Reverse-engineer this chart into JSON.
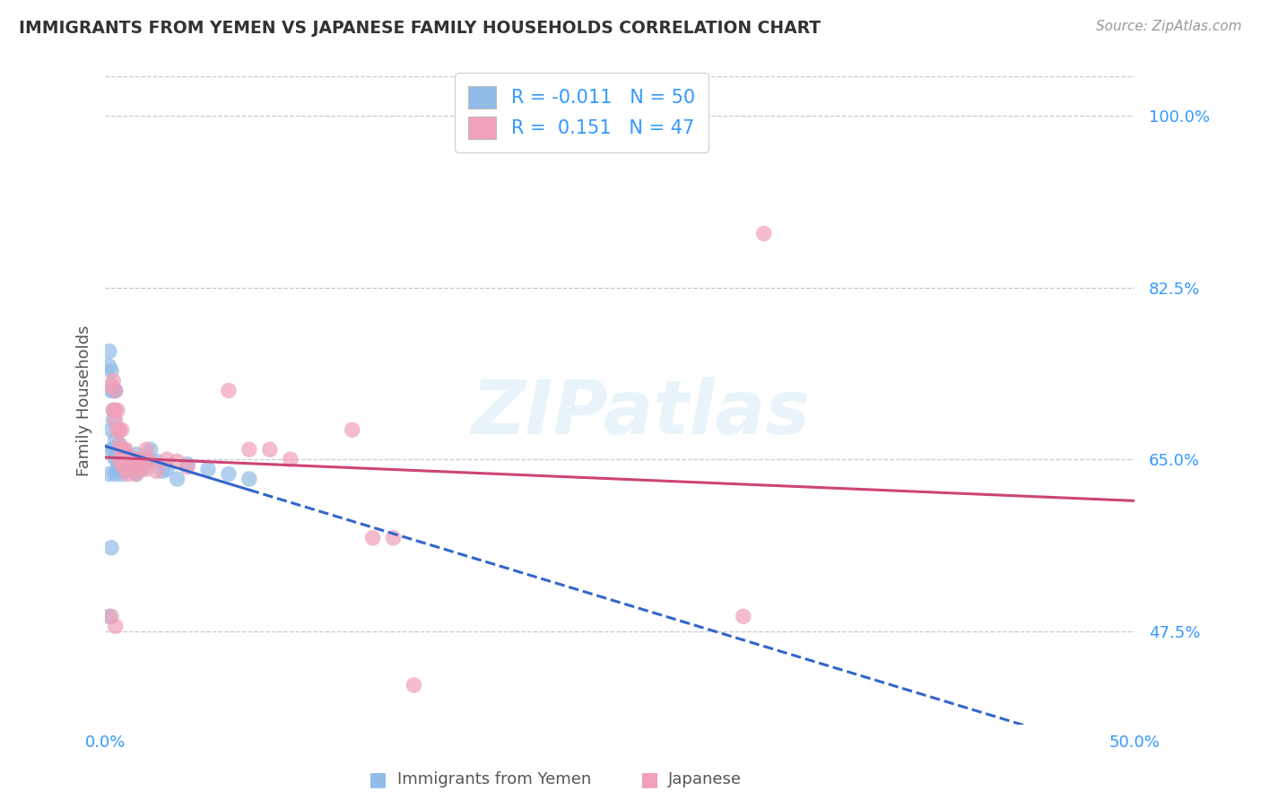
{
  "title": "IMMIGRANTS FROM YEMEN VS JAPANESE FAMILY HOUSEHOLDS CORRELATION CHART",
  "source": "Source: ZipAtlas.com",
  "ylabel": "Family Households",
  "xlim": [
    0.0,
    0.5
  ],
  "ylim": [
    0.38,
    1.04
  ],
  "y_ticks_pct": [
    47.5,
    65.0,
    82.5,
    100.0
  ],
  "background_color": "#ffffff",
  "grid_color": "#c8c8c8",
  "blue_color": "#92bce8",
  "pink_color": "#f0a0b8",
  "blue_line_color": "#3366cc",
  "pink_line_color": "#cc4477",
  "watermark": "ZIPatlas",
  "blue_r": "-0.011",
  "blue_n": "50",
  "pink_r": "0.151",
  "pink_n": "47",
  "blue_points_x": [
    0.002,
    0.002,
    0.002,
    0.003,
    0.003,
    0.003,
    0.003,
    0.004,
    0.004,
    0.004,
    0.004,
    0.005,
    0.005,
    0.005,
    0.005,
    0.006,
    0.006,
    0.006,
    0.007,
    0.007,
    0.007,
    0.008,
    0.008,
    0.008,
    0.009,
    0.009,
    0.01,
    0.01,
    0.011,
    0.012,
    0.013,
    0.014,
    0.015,
    0.015,
    0.016,
    0.017,
    0.018,
    0.019,
    0.02,
    0.022,
    0.025,
    0.028,
    0.03,
    0.035,
    0.04,
    0.05,
    0.06,
    0.07,
    0.002,
    0.003
  ],
  "blue_points_y": [
    0.745,
    0.76,
    0.635,
    0.74,
    0.72,
    0.68,
    0.66,
    0.72,
    0.7,
    0.69,
    0.66,
    0.72,
    0.67,
    0.65,
    0.635,
    0.66,
    0.65,
    0.64,
    0.665,
    0.655,
    0.64,
    0.66,
    0.65,
    0.635,
    0.655,
    0.64,
    0.652,
    0.638,
    0.645,
    0.64,
    0.648,
    0.638,
    0.655,
    0.635,
    0.648,
    0.65,
    0.64,
    0.645,
    0.65,
    0.66,
    0.648,
    0.638,
    0.64,
    0.63,
    0.645,
    0.64,
    0.635,
    0.63,
    0.49,
    0.56
  ],
  "pink_points_x": [
    0.003,
    0.004,
    0.004,
    0.005,
    0.005,
    0.005,
    0.006,
    0.006,
    0.007,
    0.007,
    0.007,
    0.008,
    0.008,
    0.008,
    0.009,
    0.009,
    0.01,
    0.01,
    0.011,
    0.011,
    0.012,
    0.013,
    0.014,
    0.015,
    0.015,
    0.016,
    0.017,
    0.018,
    0.02,
    0.02,
    0.022,
    0.025,
    0.03,
    0.035,
    0.04,
    0.06,
    0.07,
    0.08,
    0.09,
    0.12,
    0.13,
    0.14,
    0.003,
    0.005,
    0.32,
    0.31,
    0.15
  ],
  "pink_points_y": [
    0.725,
    0.73,
    0.7,
    0.72,
    0.7,
    0.69,
    0.7,
    0.68,
    0.68,
    0.665,
    0.65,
    0.68,
    0.66,
    0.645,
    0.66,
    0.645,
    0.66,
    0.64,
    0.655,
    0.635,
    0.648,
    0.642,
    0.65,
    0.645,
    0.635,
    0.648,
    0.64,
    0.65,
    0.66,
    0.64,
    0.648,
    0.638,
    0.65,
    0.648,
    0.642,
    0.72,
    0.66,
    0.66,
    0.65,
    0.68,
    0.57,
    0.57,
    0.49,
    0.48,
    0.88,
    0.49,
    0.42
  ]
}
